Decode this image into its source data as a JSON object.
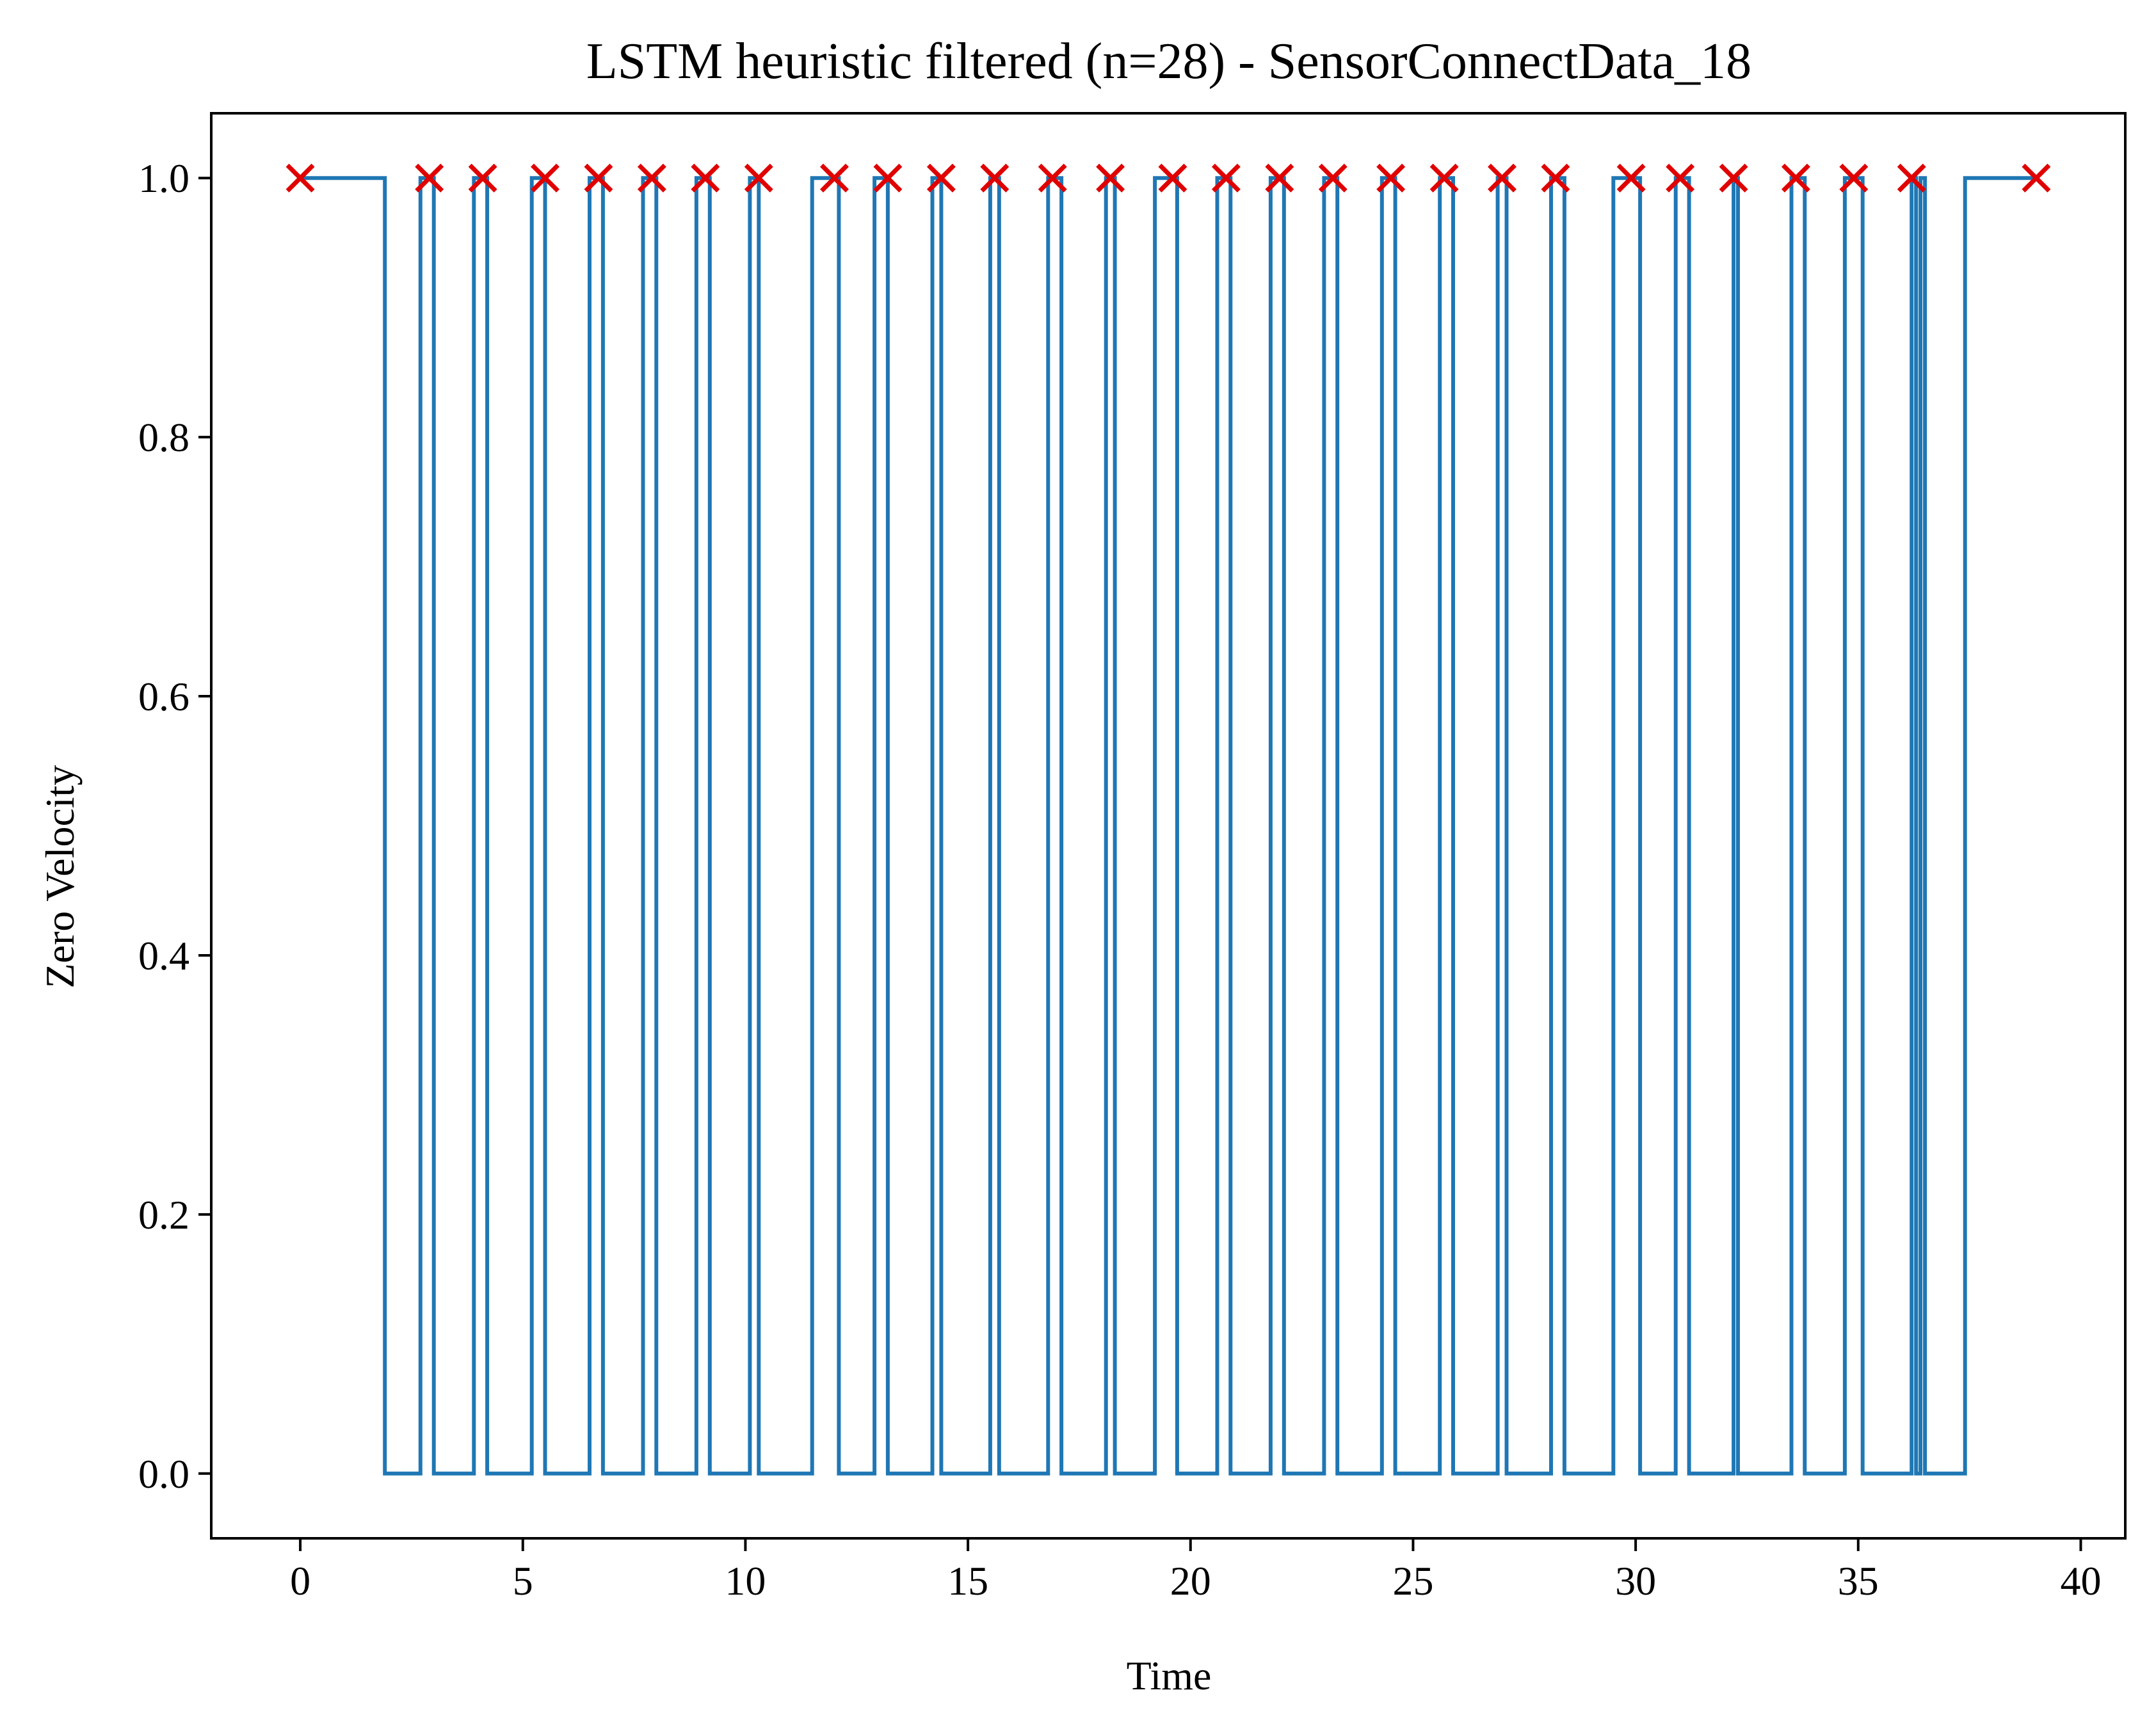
{
  "chart_data": {
    "type": "line",
    "title": "LSTM heuristic filtered (n=28) - SensorConnectData_18",
    "xlabel": "Time",
    "ylabel": "Zero Velocity",
    "xlim": [
      -2,
      41
    ],
    "ylim": [
      -0.05,
      1.05
    ],
    "xticks": [
      0,
      5,
      10,
      15,
      20,
      25,
      30,
      35,
      40
    ],
    "xtick_labels": [
      "0",
      "5",
      "10",
      "15",
      "20",
      "25",
      "30",
      "35",
      "40"
    ],
    "yticks": [
      0.0,
      0.2,
      0.4,
      0.6,
      0.8,
      1.0
    ],
    "ytick_labels": [
      "0.0",
      "0.2",
      "0.4",
      "0.6",
      "0.8",
      "1.0"
    ],
    "grid": false,
    "series": [
      {
        "kind": "step",
        "color": "#1f77b4",
        "segments": [
          [
            0,
            1
          ],
          [
            1.9,
            0
          ],
          [
            2.7,
            1
          ],
          [
            3.0,
            0
          ],
          [
            3.9,
            1
          ],
          [
            4.2,
            0
          ],
          [
            5.2,
            1
          ],
          [
            5.5,
            0
          ],
          [
            6.5,
            1
          ],
          [
            6.8,
            0
          ],
          [
            7.7,
            1
          ],
          [
            8.0,
            0
          ],
          [
            8.9,
            1
          ],
          [
            9.2,
            0
          ],
          [
            10.1,
            1
          ],
          [
            10.3,
            0
          ],
          [
            11.5,
            1
          ],
          [
            12.1,
            0
          ],
          [
            12.9,
            1
          ],
          [
            13.2,
            0
          ],
          [
            14.2,
            1
          ],
          [
            14.4,
            0
          ],
          [
            15.5,
            1
          ],
          [
            15.7,
            0
          ],
          [
            16.8,
            1
          ],
          [
            17.1,
            0
          ],
          [
            18.1,
            1
          ],
          [
            18.2,
            1
          ],
          [
            18.3,
            0
          ],
          [
            19.2,
            1
          ],
          [
            19.7,
            0
          ],
          [
            20.6,
            1
          ],
          [
            20.9,
            0
          ],
          [
            21.8,
            1
          ],
          [
            22.1,
            0
          ],
          [
            23.0,
            1
          ],
          [
            23.3,
            0
          ],
          [
            24.3,
            1
          ],
          [
            24.6,
            0
          ],
          [
            25.6,
            1
          ],
          [
            25.9,
            0
          ],
          [
            26.9,
            1
          ],
          [
            27.1,
            0
          ],
          [
            28.1,
            1
          ],
          [
            28.4,
            0
          ],
          [
            29.5,
            1
          ],
          [
            30.1,
            0
          ],
          [
            30.9,
            1
          ],
          [
            31.2,
            0
          ],
          [
            32.2,
            1
          ],
          [
            32.3,
            0
          ],
          [
            33.5,
            1
          ],
          [
            33.8,
            0
          ],
          [
            34.7,
            1
          ],
          [
            35.1,
            0
          ],
          [
            36.2,
            1
          ],
          [
            36.3,
            0
          ],
          [
            36.4,
            1
          ],
          [
            36.5,
            0
          ],
          [
            37.4,
            1
          ],
          [
            39.0,
            1
          ]
        ]
      },
      {
        "kind": "scatter",
        "marker": "x",
        "color": "#e00000",
        "x": [
          0.0,
          2.9,
          4.1,
          5.5,
          6.7,
          7.9,
          9.1,
          10.3,
          12.0,
          13.2,
          14.4,
          15.6,
          16.9,
          18.2,
          19.6,
          20.8,
          22.0,
          23.2,
          24.5,
          25.7,
          27.0,
          28.2,
          29.9,
          31.0,
          32.2,
          33.6,
          34.9,
          36.2,
          39.0
        ],
        "y": [
          1,
          1,
          1,
          1,
          1,
          1,
          1,
          1,
          1,
          1,
          1,
          1,
          1,
          1,
          1,
          1,
          1,
          1,
          1,
          1,
          1,
          1,
          1,
          1,
          1,
          1,
          1,
          1,
          1
        ]
      }
    ]
  }
}
